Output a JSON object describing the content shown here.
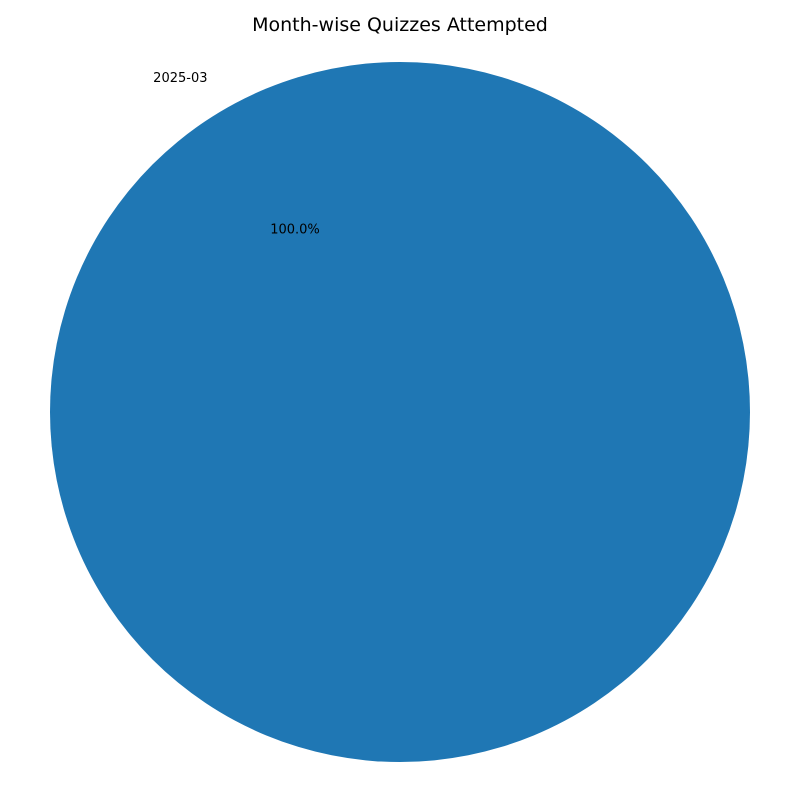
{
  "chart_data": {
    "type": "pie",
    "title": "Month-wise Quizzes Attempted",
    "slices": [
      {
        "label": "2025-03",
        "value": 100,
        "percent_label": "100.0%",
        "color": "#1f77b4"
      }
    ],
    "legend": "none"
  }
}
